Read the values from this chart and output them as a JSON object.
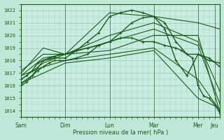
{
  "background_color": "#c0e8d8",
  "plot_bg_color": "#c8ece0",
  "grid_color": "#90c0b0",
  "line_color": "#1a5c1a",
  "ylim": [
    1013.5,
    1022.5
  ],
  "yticks": [
    1014,
    1015,
    1016,
    1017,
    1018,
    1019,
    1020,
    1021,
    1022
  ],
  "xlabel": "Pression niveau de la mer( hPa )",
  "xtick_labels": [
    "Sam",
    "Dim",
    "Lun",
    "Mar",
    "Mer",
    "Jeu"
  ],
  "xtick_positions": [
    0,
    48,
    96,
    144,
    192,
    210
  ],
  "total_hours": 216,
  "lines": [
    {
      "x": [
        0,
        6,
        12,
        18,
        24,
        30,
        36,
        42,
        48,
        60,
        72,
        84,
        96,
        108,
        120,
        132,
        144,
        156,
        168,
        180,
        192,
        204,
        216
      ],
      "y": [
        1016.0,
        1016.3,
        1016.8,
        1017.2,
        1017.5,
        1017.8,
        1018.0,
        1018.0,
        1018.0,
        1018.2,
        1018.5,
        1019.2,
        1019.5,
        1020.2,
        1021.0,
        1021.4,
        1021.5,
        1020.5,
        1018.0,
        1016.8,
        1018.5,
        1018.2,
        1017.5
      ],
      "marker": true,
      "lw": 1.0
    },
    {
      "x": [
        0,
        12,
        24,
        36,
        48,
        60,
        72,
        84,
        96,
        108,
        120,
        132,
        144,
        156,
        168,
        180,
        192,
        204,
        216
      ],
      "y": [
        1016.2,
        1016.8,
        1018.0,
        1018.2,
        1018.2,
        1018.8,
        1019.5,
        1020.2,
        1021.5,
        1021.8,
        1022.0,
        1021.8,
        1021.5,
        1021.0,
        1019.5,
        1018.5,
        1018.5,
        1018.0,
        1017.8
      ],
      "marker": true,
      "lw": 1.0
    },
    {
      "x": [
        0,
        24,
        48,
        96,
        144,
        192,
        216
      ],
      "y": [
        1016.5,
        1017.8,
        1018.5,
        1021.8,
        1021.5,
        1021.0,
        1020.5
      ],
      "marker": false,
      "lw": 0.8
    },
    {
      "x": [
        0,
        24,
        48,
        96,
        144,
        192,
        216
      ],
      "y": [
        1016.8,
        1018.2,
        1018.5,
        1020.0,
        1021.0,
        1019.5,
        1015.5
      ],
      "marker": false,
      "lw": 0.8
    },
    {
      "x": [
        0,
        24,
        48,
        96,
        144,
        192,
        216
      ],
      "y": [
        1017.0,
        1019.0,
        1018.5,
        1019.5,
        1020.5,
        1019.2,
        1014.5
      ],
      "marker": false,
      "lw": 0.8
    },
    {
      "x": [
        0,
        24,
        48,
        96,
        144,
        192,
        216
      ],
      "y": [
        1017.2,
        1018.5,
        1018.5,
        1018.8,
        1020.0,
        1020.0,
        1013.8
      ],
      "marker": false,
      "lw": 0.8
    },
    {
      "x": [
        0,
        24,
        48,
        96,
        144,
        192,
        216
      ],
      "y": [
        1016.8,
        1017.5,
        1018.0,
        1018.5,
        1019.0,
        1016.5,
        1014.0
      ],
      "marker": false,
      "lw": 0.8
    },
    {
      "x": [
        0,
        24,
        48,
        96,
        144,
        192,
        216
      ],
      "y": [
        1016.2,
        1017.0,
        1017.8,
        1018.2,
        1018.8,
        1015.0,
        1014.2
      ],
      "marker": false,
      "lw": 0.8
    },
    {
      "x": [
        0,
        6,
        12,
        18,
        24,
        30,
        36,
        42,
        48,
        60,
        72,
        84,
        96,
        108,
        120,
        132,
        144,
        156,
        168,
        174,
        180,
        186,
        192,
        198,
        204,
        210,
        216
      ],
      "y": [
        1016.5,
        1016.8,
        1017.2,
        1017.8,
        1018.0,
        1018.2,
        1018.3,
        1018.5,
        1018.5,
        1018.8,
        1019.0,
        1019.2,
        1019.5,
        1019.8,
        1019.8,
        1019.5,
        1019.5,
        1019.2,
        1019.0,
        1018.8,
        1018.5,
        1018.2,
        1016.0,
        1015.2,
        1015.0,
        1014.5,
        1013.8
      ],
      "marker": true,
      "lw": 1.0
    }
  ]
}
